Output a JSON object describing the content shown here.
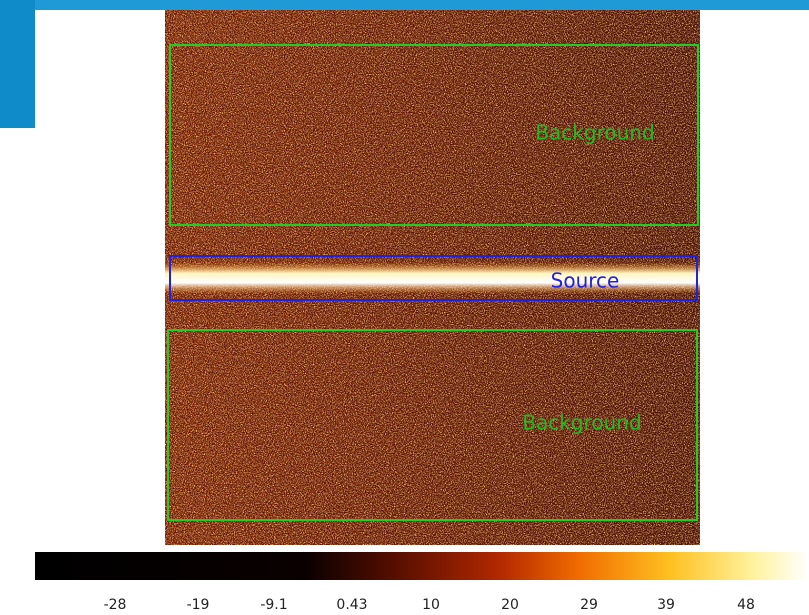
{
  "regions": [
    {
      "label": "Background"
    },
    {
      "label": "Source"
    },
    {
      "label": "Background"
    }
  ],
  "colorbar": {
    "ticks": [
      "-28",
      "-19",
      "-9.1",
      "0.43",
      "10",
      "20",
      "29",
      "39",
      "48"
    ]
  }
}
